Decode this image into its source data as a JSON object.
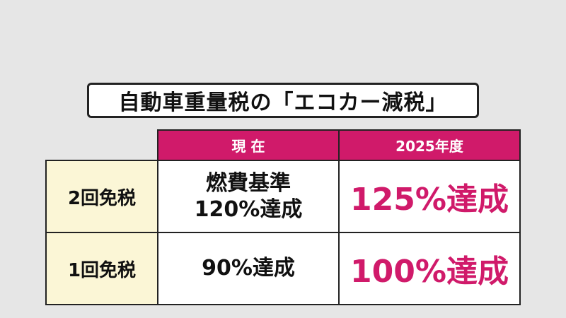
{
  "title": "自動車重量税の「エコカー減税」",
  "table": {
    "headers": [
      "現 在",
      "2025年度"
    ],
    "rows": [
      {
        "label": "2回免税",
        "current_line1": "燃費基準",
        "current_line2": "120%達成",
        "target": "125%達成"
      },
      {
        "label": "1回免税",
        "current_line1": "90%達成",
        "current_line2": "",
        "target": "100%達成"
      }
    ]
  },
  "colors": {
    "accent": "#d01a6a",
    "row_label_bg": "#fbf6d6",
    "page_bg": "#e6e6e6"
  }
}
